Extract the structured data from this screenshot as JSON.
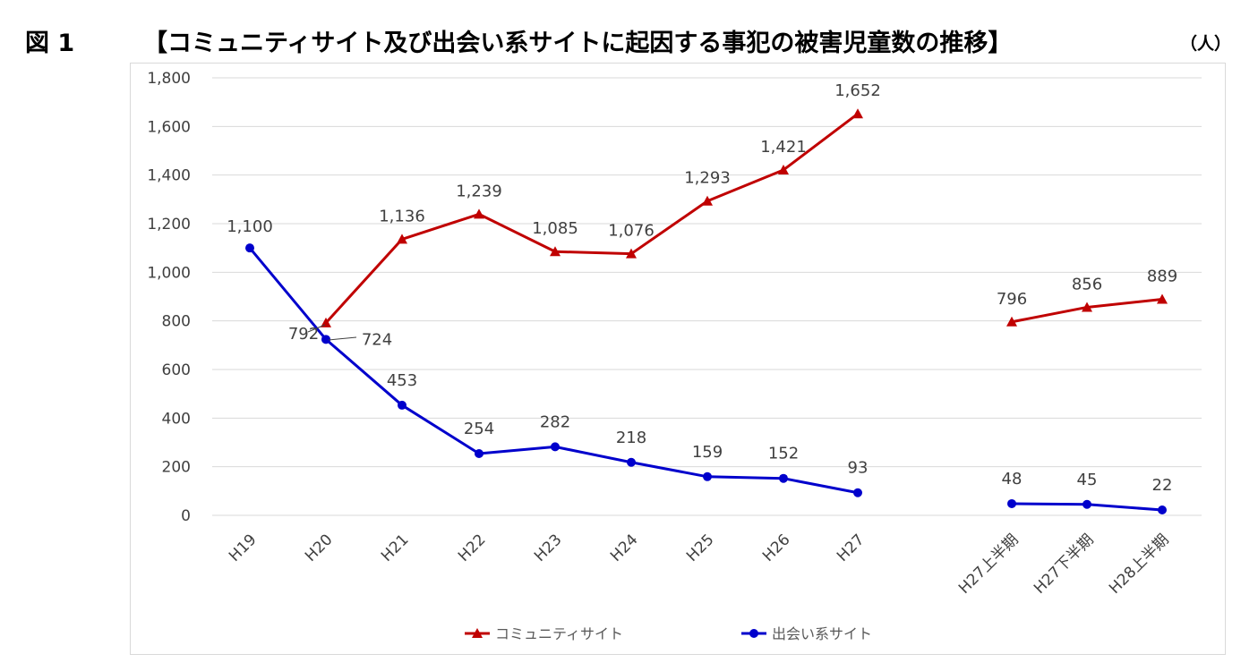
{
  "figure": {
    "label": "図 1",
    "title": "【コミュニティサイト及び出会い系サイトに起因する事犯の被害児童数の推移】",
    "unit": "（人）"
  },
  "chart_data": {
    "type": "line",
    "categories": [
      "H19",
      "H20",
      "H21",
      "H22",
      "H23",
      "H24",
      "H25",
      "H26",
      "H27",
      "H27上半期",
      "H27下半期",
      "H28上半期"
    ],
    "ylim": [
      0,
      1800
    ],
    "yticks": [
      0,
      200,
      400,
      600,
      800,
      1000,
      1200,
      1400,
      1600,
      1800
    ],
    "ytick_labels": [
      "0",
      "200",
      "400",
      "600",
      "800",
      "1,000",
      "1,200",
      "1,400",
      "1,600",
      "1,800"
    ],
    "grid": true,
    "legend_position": "bottom",
    "series": [
      {
        "name": "コミュニティサイト",
        "color": "#c00000",
        "marker": "triangle",
        "values": [
          null,
          792,
          1136,
          1239,
          1085,
          1076,
          1293,
          1421,
          1652,
          796,
          856,
          889
        ],
        "labels": [
          "",
          "792",
          "1,136",
          "1,239",
          "1,085",
          "1,076",
          "1,293",
          "1,421",
          "1,652",
          "796",
          "856",
          "889"
        ]
      },
      {
        "name": "出会い系サイト",
        "color": "#0000cc",
        "marker": "circle",
        "values": [
          1100,
          724,
          453,
          254,
          282,
          218,
          159,
          152,
          93,
          48,
          45,
          22
        ],
        "labels": [
          "1,100",
          "724",
          "453",
          "254",
          "282",
          "218",
          "159",
          "152",
          "93",
          "48",
          "45",
          "22"
        ]
      }
    ],
    "segments": [
      [
        0,
        8
      ],
      [
        9,
        11
      ]
    ]
  }
}
